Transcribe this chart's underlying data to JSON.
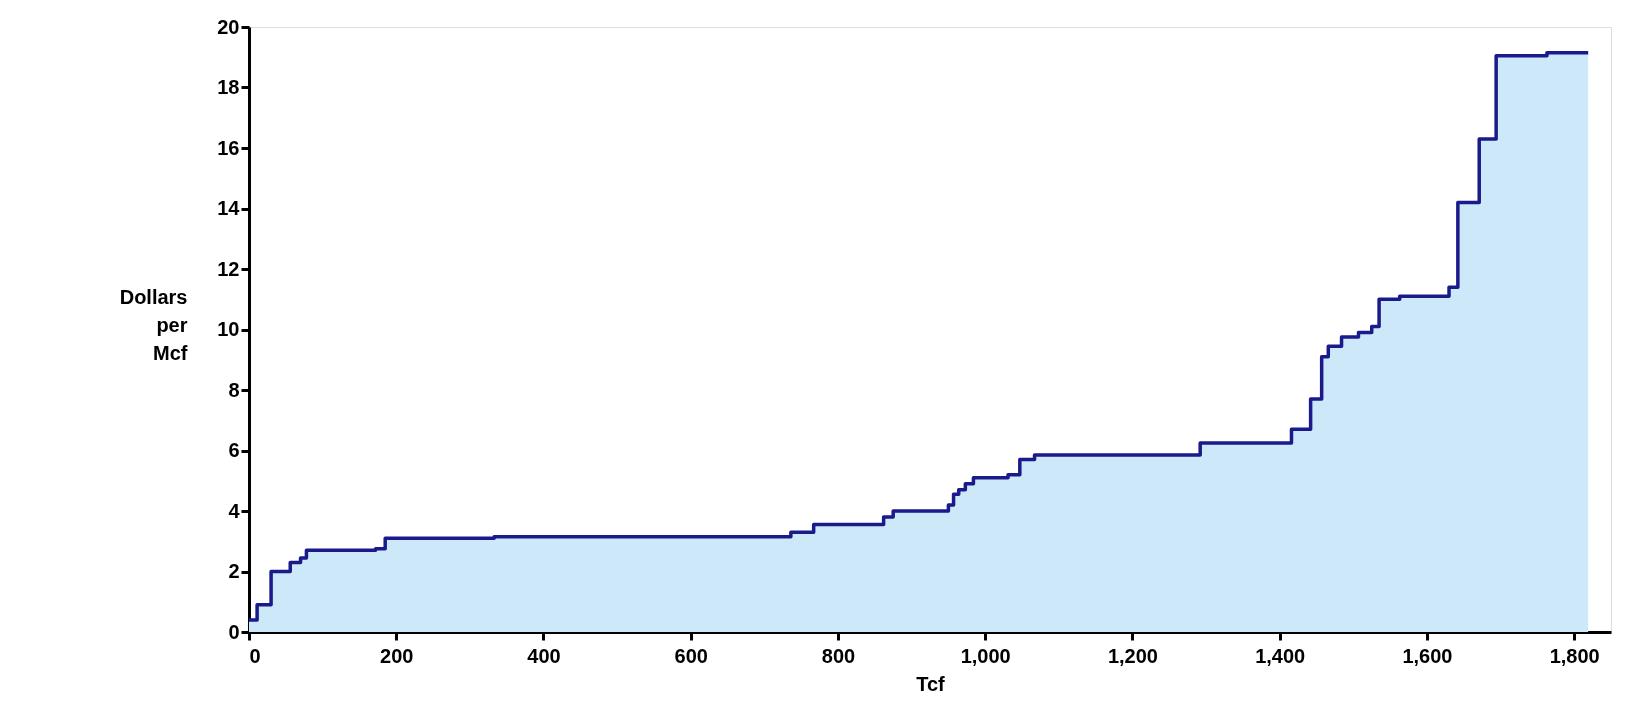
{
  "chart_data": {
    "type": "area",
    "xlabel": "Tcf",
    "ylabel": "Dollars per Mcf",
    "x": [
      0,
      11,
      11,
      30,
      30,
      56,
      56,
      70,
      70,
      78,
      78,
      172,
      172,
      185,
      185,
      333,
      333,
      736,
      736,
      767,
      767,
      862,
      862,
      875,
      875,
      950,
      950,
      957,
      957,
      964,
      964,
      973,
      973,
      984,
      984,
      1031,
      1031,
      1047,
      1047,
      1067,
      1067,
      1292,
      1292,
      1416,
      1416,
      1442,
      1442,
      1457,
      1457,
      1466,
      1466,
      1484,
      1484,
      1507,
      1507,
      1525,
      1525,
      1535,
      1535,
      1563,
      1563,
      1630,
      1630,
      1642,
      1642,
      1671,
      1671,
      1694,
      1694,
      1763,
      1763,
      1819
    ],
    "series": [
      {
        "color": "#1a1a8a",
        "values": [
          0.4,
          0.4,
          0.9,
          0.9,
          2.0,
          2.0,
          2.3,
          2.3,
          2.45,
          2.45,
          2.7,
          2.7,
          2.75,
          2.75,
          3.1,
          3.1,
          3.15,
          3.15,
          3.3,
          3.3,
          3.55,
          3.55,
          3.8,
          3.8,
          4.0,
          4.0,
          4.2,
          4.2,
          4.55,
          4.55,
          4.7,
          4.7,
          4.9,
          4.9,
          5.1,
          5.1,
          5.2,
          5.2,
          5.7,
          5.7,
          5.85,
          5.85,
          6.25,
          6.25,
          6.7,
          6.7,
          7.7,
          7.7,
          9.1,
          9.1,
          9.45,
          9.45,
          9.75,
          9.75,
          9.9,
          9.9,
          10.1,
          10.1,
          11.0,
          11.0,
          11.1,
          11.1,
          11.4,
          11.4,
          14.2,
          14.2,
          16.3,
          16.3,
          19.05,
          19.05,
          19.15,
          19.15
        ]
      }
    ],
    "xlim": [
      0,
      1850
    ],
    "ylim": [
      0,
      20
    ],
    "xticks": [
      0,
      200,
      400,
      600,
      800,
      {
        "value": 1000,
        "label": "1,000"
      },
      {
        "value": 1200,
        "label": "1,200"
      },
      {
        "value": 1400,
        "label": "1,400"
      },
      {
        "value": 1600,
        "label": "1,600"
      },
      {
        "value": 1800,
        "label": "1,800"
      }
    ],
    "yticks": [
      0,
      2,
      4,
      6,
      8,
      10,
      12,
      14,
      16,
      18,
      20
    ],
    "grid": false
  }
}
